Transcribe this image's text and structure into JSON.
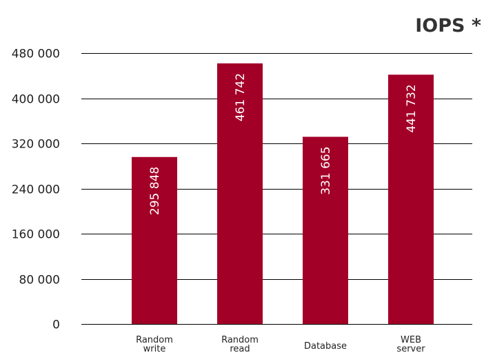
{
  "chart_data": {
    "type": "bar",
    "title": "IOPS *",
    "xlabel": "",
    "ylabel": "",
    "categories": [
      [
        "Random",
        "write"
      ],
      [
        "Random",
        "read"
      ],
      [
        "Database"
      ],
      [
        "WEB",
        "server"
      ]
    ],
    "values": [
      295848,
      461742,
      331665,
      441732
    ],
    "value_labels": [
      "295 848",
      "461 742",
      "331 665",
      "441 732"
    ],
    "ylim": [
      0,
      480000
    ],
    "yticks": [
      0,
      80000,
      160000,
      240000,
      320000,
      400000,
      480000
    ],
    "ytick_labels": [
      "0",
      "80 000",
      "160 000",
      "240 000",
      "320 000",
      "400 000",
      "480 000"
    ],
    "grid": true,
    "legend": "none",
    "bar_color": "#a30028"
  }
}
